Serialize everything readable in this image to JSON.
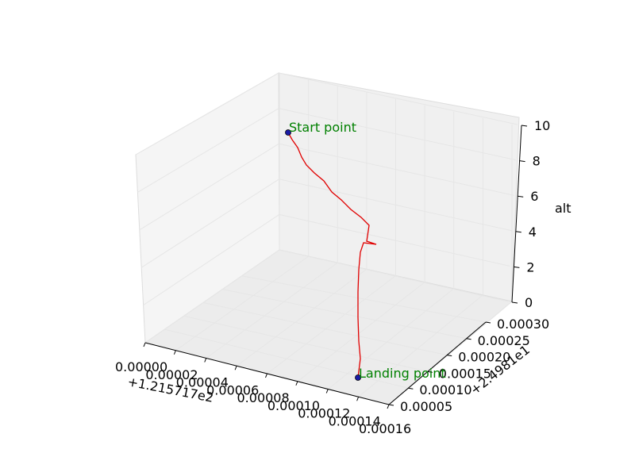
{
  "chart_data": {
    "type": "line3d",
    "title": "",
    "zlabel": "alt",
    "x_offset_label": "+1.215717e2",
    "y_offset_label": "+2.4981e1",
    "x_ticks": [
      "0.00000",
      "0.00002",
      "0.00004",
      "0.00006",
      "0.00008",
      "0.00010",
      "0.00012",
      "0.00014",
      "0.00016"
    ],
    "y_ticks": [
      "0.00005",
      "0.00010",
      "0.00015",
      "0.00020",
      "0.00025",
      "0.00030"
    ],
    "z_ticks": [
      "0",
      "2",
      "4",
      "6",
      "8",
      "10"
    ],
    "zlim": [
      0,
      10
    ],
    "grid": true,
    "series": [
      {
        "color": "#e00000",
        "points_alt": [
          9.7,
          9.4,
          9.0,
          8.6,
          8.2,
          7.8,
          7.4,
          7.0,
          6.5,
          6.1,
          5.7,
          5.2,
          4.8,
          4.4,
          4.0,
          3.4,
          3.0,
          2.4,
          1.8,
          1.2,
          0.6,
          0.0
        ]
      }
    ],
    "markers": [
      {
        "label": "Start point",
        "marker_color": "#1a1aa6"
      },
      {
        "label": "Landing point",
        "marker_color": "#1a1aa6"
      }
    ]
  }
}
